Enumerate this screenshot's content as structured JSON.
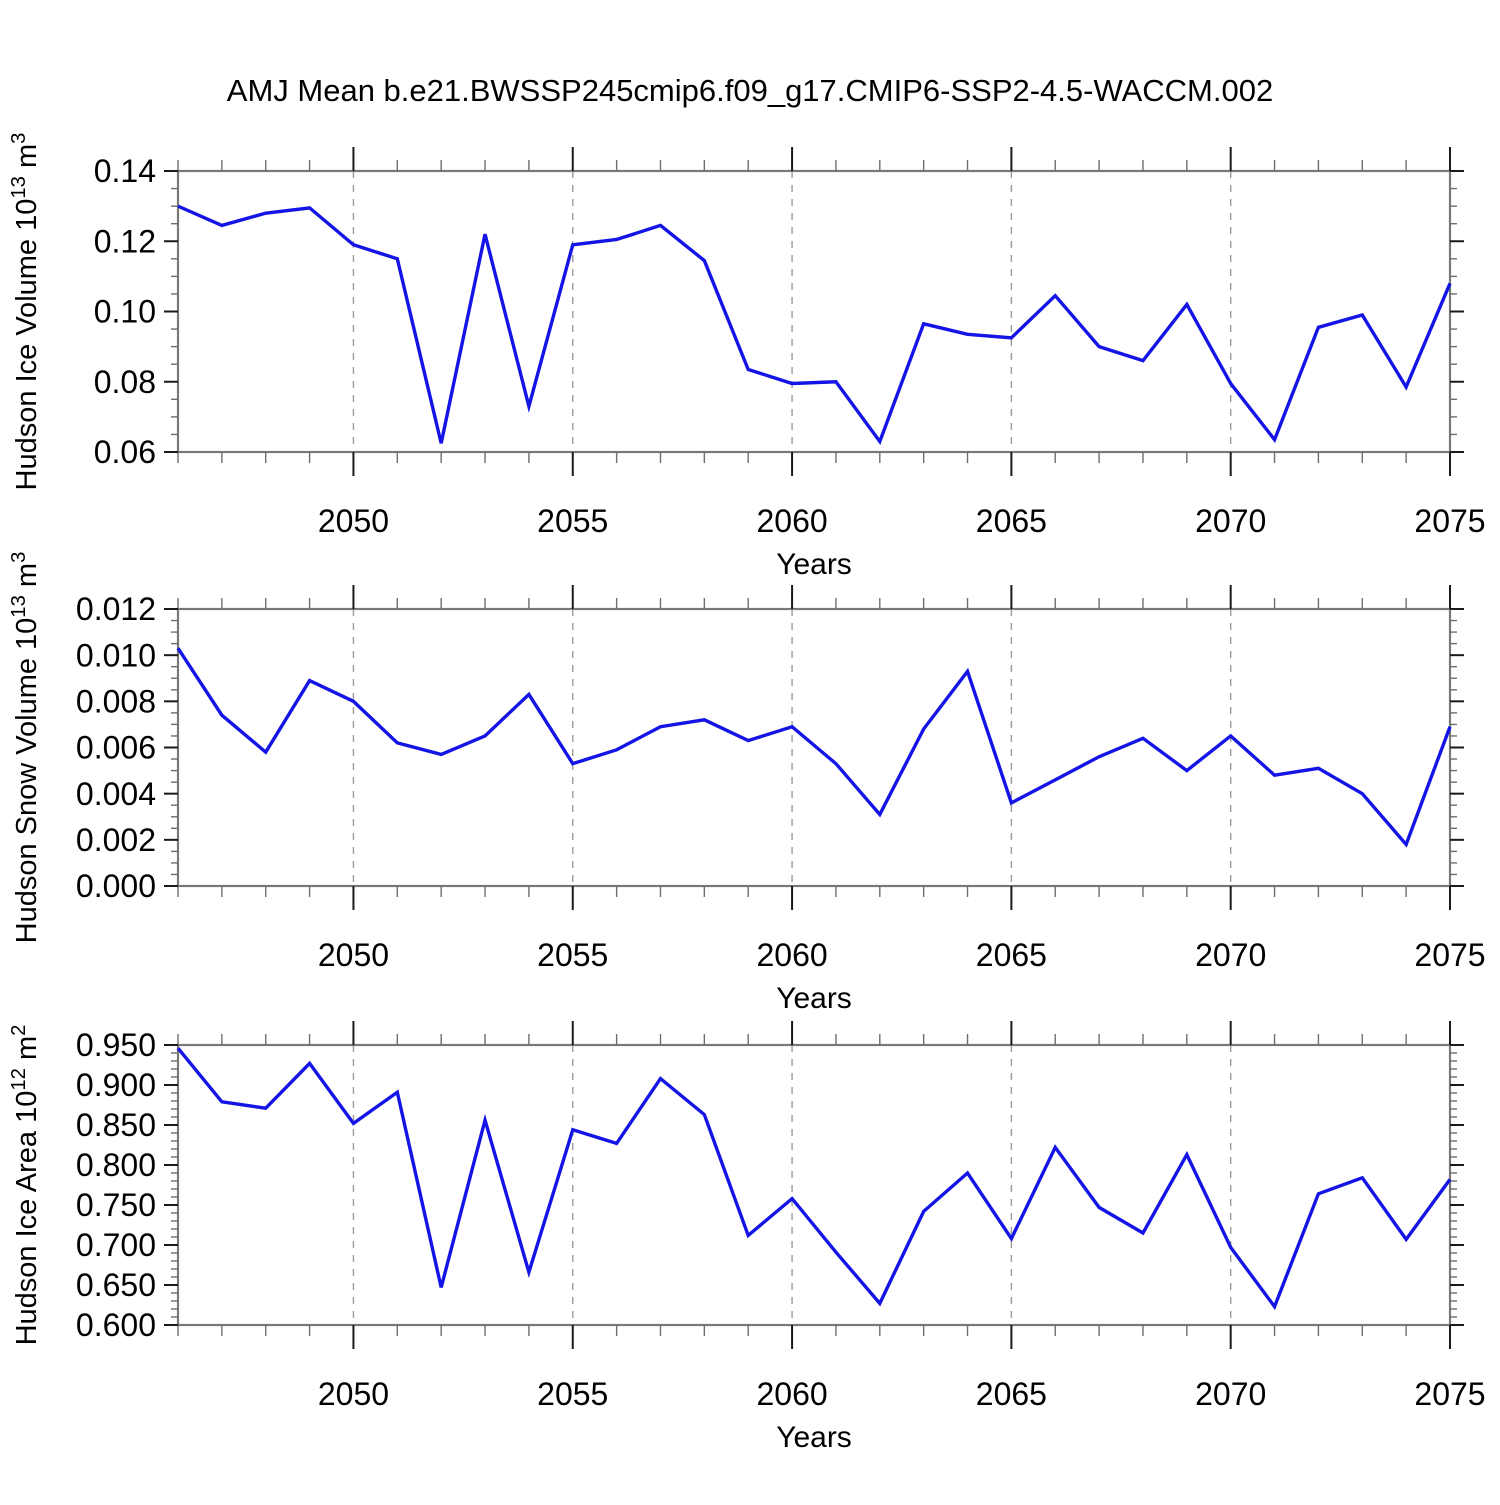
{
  "title": "AMJ Mean b.e21.BWSSP245cmip6.f09_g17.CMIP6-SSP2-4.5-WACCM.002",
  "line_color": "#1414E6",
  "chart_data": [
    {
      "type": "line",
      "name": "hudson-ice-volume",
      "ylabel": "Hudson Ice Volume 10^13 m^3",
      "ylabel_parts": [
        {
          "t": "Hudson Ice Volume 10"
        },
        {
          "t": "13",
          "sup": true
        },
        {
          "t": " m"
        },
        {
          "t": "3",
          "sup": true
        }
      ],
      "xlabel": "Years",
      "x": [
        2046,
        2047,
        2048,
        2049,
        2050,
        2051,
        2052,
        2053,
        2054,
        2055,
        2056,
        2057,
        2058,
        2059,
        2060,
        2061,
        2062,
        2063,
        2064,
        2065,
        2066,
        2067,
        2068,
        2069,
        2070,
        2071,
        2072,
        2073,
        2074,
        2075
      ],
      "values": [
        0.13,
        0.1245,
        0.128,
        0.1295,
        0.119,
        0.115,
        0.0625,
        0.122,
        0.073,
        0.119,
        0.1205,
        0.1245,
        0.1145,
        0.0835,
        0.0795,
        0.08,
        0.063,
        0.0965,
        0.0935,
        0.0925,
        0.1045,
        0.09,
        0.086,
        0.102,
        0.0795,
        0.0635,
        0.0955,
        0.099,
        0.0785,
        0.108
      ],
      "xlim": [
        2046,
        2075
      ],
      "ylim": [
        0.06,
        0.14
      ],
      "ytick_values": [
        0.06,
        0.08,
        0.1,
        0.12,
        0.14
      ],
      "ytick_labels": [
        "0.06",
        "0.08",
        "0.10",
        "0.12",
        "0.14"
      ],
      "y_minor_step": 0.005,
      "x_major_ticks": [
        2050,
        2055,
        2060,
        2065,
        2070,
        2075
      ],
      "x_tick_labels": [
        "2050",
        "2055",
        "2060",
        "2065",
        "2070",
        "2075"
      ],
      "x_grid_years": [
        2050,
        2055,
        2060,
        2065,
        2070
      ],
      "grid": "vertical-dashed",
      "legend": "none"
    },
    {
      "type": "line",
      "name": "hudson-snow-volume",
      "ylabel": "Hudson Snow Volume 10^13 m^3",
      "ylabel_parts": [
        {
          "t": "Hudson Snow Volume 10"
        },
        {
          "t": "13",
          "sup": true
        },
        {
          "t": " m"
        },
        {
          "t": "3",
          "sup": true
        }
      ],
      "xlabel": "Years",
      "x": [
        2046,
        2047,
        2048,
        2049,
        2050,
        2051,
        2052,
        2053,
        2054,
        2055,
        2056,
        2057,
        2058,
        2059,
        2060,
        2061,
        2062,
        2063,
        2064,
        2065,
        2066,
        2067,
        2068,
        2069,
        2070,
        2071,
        2072,
        2073,
        2074,
        2075
      ],
      "values": [
        0.0103,
        0.0074,
        0.0058,
        0.0089,
        0.008,
        0.0062,
        0.0057,
        0.0065,
        0.0083,
        0.0053,
        0.0059,
        0.0069,
        0.0072,
        0.0063,
        0.0069,
        0.0053,
        0.0031,
        0.0068,
        0.0093,
        0.0036,
        0.0046,
        0.0056,
        0.0064,
        0.005,
        0.0065,
        0.0048,
        0.0051,
        0.004,
        0.0018,
        0.0069
      ],
      "xlim": [
        2046,
        2075
      ],
      "ylim": [
        0.0,
        0.012
      ],
      "ytick_values": [
        0.0,
        0.002,
        0.004,
        0.006,
        0.008,
        0.01,
        0.012
      ],
      "ytick_labels": [
        "0.000",
        "0.002",
        "0.004",
        "0.006",
        "0.008",
        "0.010",
        "0.012"
      ],
      "y_minor_step": 0.0005,
      "x_major_ticks": [
        2050,
        2055,
        2060,
        2065,
        2070,
        2075
      ],
      "x_tick_labels": [
        "2050",
        "2055",
        "2060",
        "2065",
        "2070",
        "2075"
      ],
      "x_grid_years": [
        2050,
        2055,
        2060,
        2065,
        2070
      ],
      "grid": "vertical-dashed",
      "legend": "none"
    },
    {
      "type": "line",
      "name": "hudson-ice-area",
      "ylabel": "Hudson Ice Area 10^12 m^2",
      "ylabel_parts": [
        {
          "t": "Hudson Ice Area 10"
        },
        {
          "t": "12",
          "sup": true
        },
        {
          "t": " m"
        },
        {
          "t": "2",
          "sup": true
        }
      ],
      "xlabel": "Years",
      "x": [
        2046,
        2047,
        2048,
        2049,
        2050,
        2051,
        2052,
        2053,
        2054,
        2055,
        2056,
        2057,
        2058,
        2059,
        2060,
        2061,
        2062,
        2063,
        2064,
        2065,
        2066,
        2067,
        2068,
        2069,
        2070,
        2071,
        2072,
        2073,
        2074,
        2075
      ],
      "values": [
        0.946,
        0.879,
        0.871,
        0.927,
        0.852,
        0.891,
        0.647,
        0.856,
        0.666,
        0.844,
        0.827,
        0.908,
        0.863,
        0.712,
        0.758,
        0.691,
        0.627,
        0.742,
        0.79,
        0.708,
        0.822,
        0.747,
        0.715,
        0.813,
        0.697,
        0.623,
        0.764,
        0.784,
        0.707,
        0.782
      ],
      "xlim": [
        2046,
        2075
      ],
      "ylim": [
        0.6,
        0.95
      ],
      "ytick_values": [
        0.6,
        0.65,
        0.7,
        0.75,
        0.8,
        0.85,
        0.9,
        0.95
      ],
      "ytick_labels": [
        "0.600",
        "0.650",
        "0.700",
        "0.750",
        "0.800",
        "0.850",
        "0.900",
        "0.950"
      ],
      "y_minor_step": 0.01,
      "x_major_ticks": [
        2050,
        2055,
        2060,
        2065,
        2070,
        2075
      ],
      "x_tick_labels": [
        "2050",
        "2055",
        "2060",
        "2065",
        "2070",
        "2075"
      ],
      "x_grid_years": [
        2050,
        2055,
        2060,
        2065,
        2070
      ],
      "grid": "vertical-dashed",
      "legend": "none"
    }
  ]
}
